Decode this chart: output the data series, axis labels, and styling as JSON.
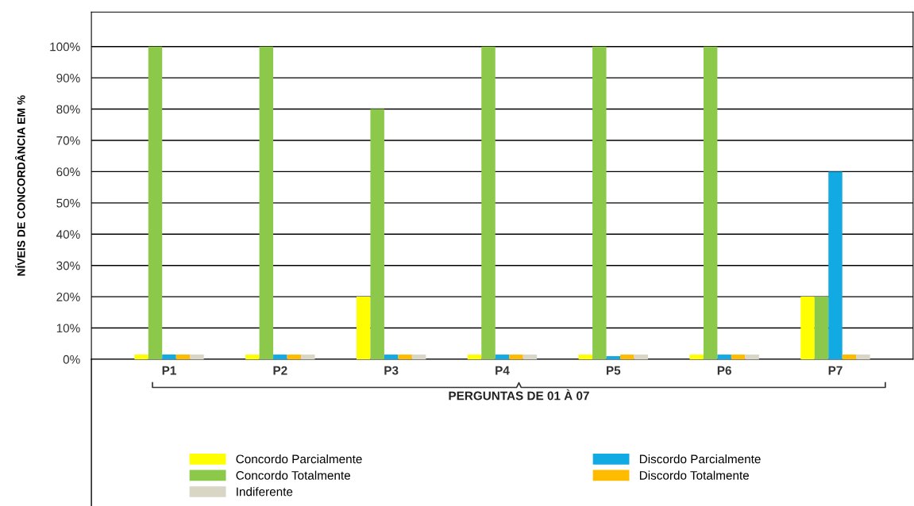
{
  "chart_data": {
    "type": "bar",
    "xlabel": "PERGUNTAS DE 01 À 07",
    "ylabel": "NÍVEIS DE CONCORDÂNCIA EM %",
    "categories": [
      "P1",
      "P2",
      "P3",
      "P4",
      "P5",
      "P6",
      "P7"
    ],
    "series": [
      {
        "name": "Concordo Parcialmente",
        "color": "#ffff00",
        "values": [
          1.5,
          1.5,
          20,
          1.5,
          1.5,
          1.5,
          20
        ]
      },
      {
        "name": "Concordo Totalmente",
        "color": "#8cc94a",
        "values": [
          100,
          100,
          80,
          100,
          100,
          100,
          20
        ]
      },
      {
        "name": "Discordo Parcialmente",
        "color": "#12aae2",
        "values": [
          1.5,
          1.5,
          1.5,
          1.5,
          1,
          1.5,
          60
        ]
      },
      {
        "name": "Discordo Totalmente",
        "color": "#ffbb00",
        "values": [
          1.5,
          1.5,
          1.5,
          1.5,
          1.5,
          1.5,
          1.5
        ]
      },
      {
        "name": "Indiferente",
        "color": "#d9d6c6",
        "values": [
          1.5,
          1.5,
          1.5,
          1.5,
          1.5,
          1.5,
          1.5
        ]
      }
    ],
    "ylim": [
      0,
      111
    ],
    "yticks": [
      {
        "value": 0,
        "label": "0%"
      },
      {
        "value": 10,
        "label": "10%"
      },
      {
        "value": 20,
        "label": "20%"
      },
      {
        "value": 30,
        "label": "30%"
      },
      {
        "value": 40,
        "label": "40%"
      },
      {
        "value": 50,
        "label": "50%"
      },
      {
        "value": 60,
        "label": "60%"
      },
      {
        "value": 70,
        "label": "70%"
      },
      {
        "value": 80,
        "label": "80%"
      },
      {
        "value": 90,
        "label": "90%"
      },
      {
        "value": 100,
        "label": "100%"
      }
    ],
    "grid": "y",
    "legend": "bottom"
  }
}
